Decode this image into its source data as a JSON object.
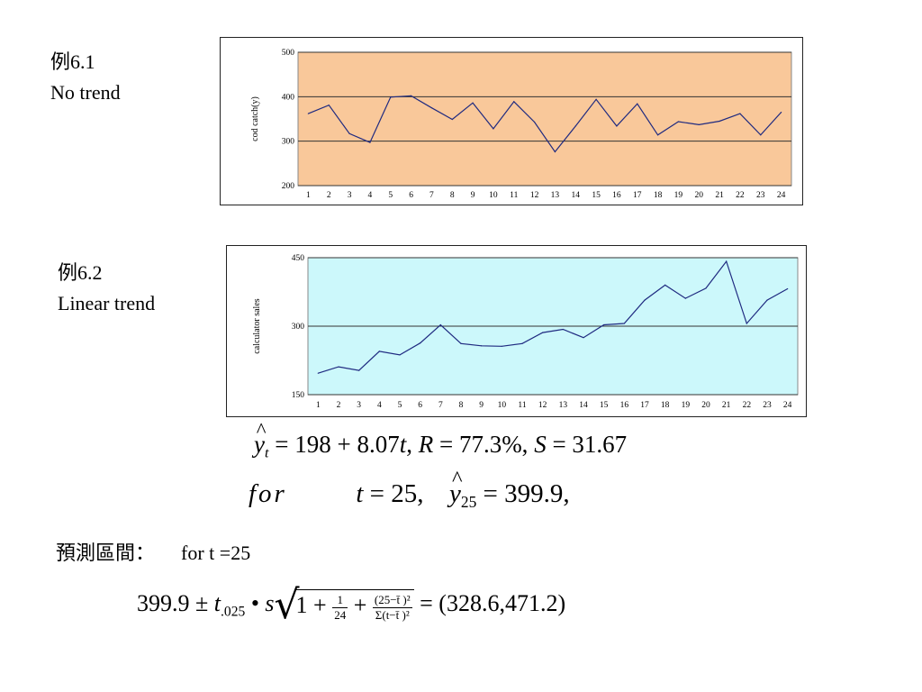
{
  "labels": {
    "ex1": {
      "title": "例6.1",
      "subtitle": "No trend"
    },
    "ex2": {
      "title": "例6.2",
      "subtitle": "Linear trend"
    },
    "interval": {
      "title": "預測區間：",
      "cond": "for t =25"
    }
  },
  "formulas": {
    "regression": {
      "y": "y",
      "sub": "t",
      "rhs": "= 198 + 8.07",
      "t": "t",
      "rest1": ", ",
      "R": "R",
      "rest2": " = 77.3%, ",
      "S": "S",
      "rest3": " = 31.67"
    },
    "forecast": {
      "for": "for",
      "t": "t",
      "teq": " = 25,",
      "y": "y",
      "sub": "25",
      "val": " = 399.9,"
    },
    "interval": {
      "center": "399.9",
      "pm": "±",
      "t": "t",
      "tsub": ".025",
      "dot": "•",
      "s": "s",
      "one": "1 +",
      "f1num": "1",
      "f1den": "24",
      "plus": "+",
      "f2num": "(25−t̄ )²",
      "f2den": "Σ(t−t̄ )²",
      "result": "= (328.6,471.2)"
    }
  },
  "chart_data": [
    {
      "type": "line",
      "ylabel": "cod catch(y)",
      "ylim": [
        200,
        500
      ],
      "yticks": [
        200,
        300,
        400,
        500
      ],
      "grid": "horizontal",
      "plot_bg": "#f9c89a",
      "line_color": "#1f2a80",
      "categories": [
        "1",
        "2",
        "3",
        "4",
        "5",
        "6",
        "7",
        "8",
        "9",
        "10",
        "11",
        "12",
        "13",
        "14",
        "15",
        "16",
        "17",
        "18",
        "19",
        "20",
        "21",
        "22",
        "23",
        "24"
      ],
      "values": [
        362,
        381,
        317,
        297,
        399,
        402,
        375,
        349,
        386,
        328,
        389,
        343,
        276,
        334,
        394,
        334,
        384,
        314,
        344,
        337,
        345,
        362,
        314,
        365
      ]
    },
    {
      "type": "line",
      "ylabel": "calculator sales",
      "ylim": [
        150,
        450
      ],
      "yticks": [
        150,
        300,
        450
      ],
      "grid": "horizontal",
      "plot_bg": "#ccf8fb",
      "line_color": "#1f2a80",
      "categories": [
        "1",
        "2",
        "3",
        "4",
        "5",
        "6",
        "7",
        "8",
        "9",
        "10",
        "11",
        "12",
        "13",
        "14",
        "15",
        "16",
        "17",
        "18",
        "19",
        "20",
        "21",
        "22",
        "23",
        "24"
      ],
      "values": [
        197,
        211,
        203,
        245,
        237,
        263,
        303,
        262,
        257,
        256,
        262,
        286,
        293,
        275,
        303,
        306,
        357,
        390,
        361,
        383,
        442,
        306,
        357,
        382
      ]
    }
  ]
}
